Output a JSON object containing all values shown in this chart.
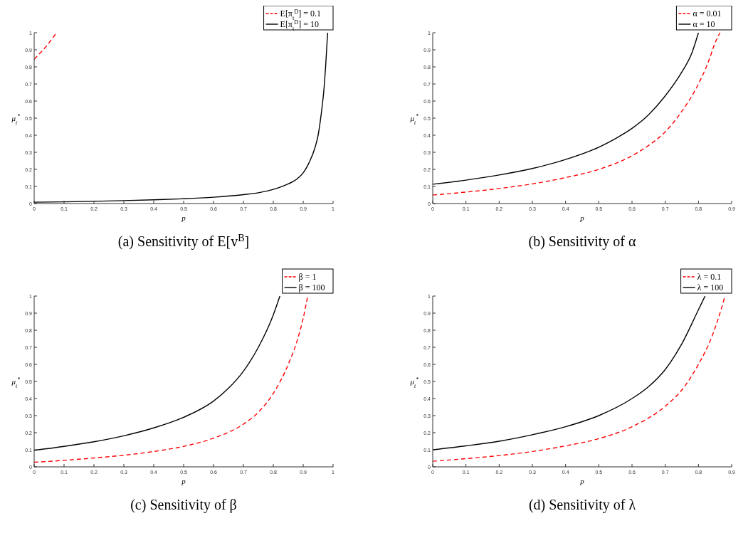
{
  "chart_data": [
    {
      "type": "line",
      "title": "(a) Sensitivity of E[v$^{B}$]",
      "xlabel": "p",
      "ylabel": "μ$_{t}$$^{*}$",
      "xlim": [
        0,
        1
      ],
      "ylim": [
        0,
        1
      ],
      "xticks": [
        0,
        0.1,
        0.2,
        0.3,
        0.4,
        0.5,
        0.6,
        0.7,
        0.8,
        0.9,
        1
      ],
      "yticks": [
        0,
        0.1,
        0.2,
        0.3,
        0.4,
        0.5,
        0.6,
        0.7,
        0.8,
        0.9,
        1
      ],
      "legend": "top right",
      "grid": false,
      "series": [
        {
          "name": "E[π$_{t}$$^{D}$] = 0.1",
          "color": "#ff0000",
          "line_style": "dashed",
          "x": [
            0,
            0.04,
            0.075
          ],
          "values": [
            0.845,
            0.92,
            1
          ]
        },
        {
          "name": "E[π$_{t}$$^{D}$] = 10",
          "color": "#000000",
          "line_style": "solid",
          "x": [
            0,
            0.1,
            0.2,
            0.3,
            0.4,
            0.5,
            0.6,
            0.7,
            0.75,
            0.8,
            0.85,
            0.88,
            0.9,
            0.92,
            0.94,
            0.95,
            0.96,
            0.97,
            0.975,
            0.98,
            0.982
          ],
          "values": [
            0.008,
            0.01,
            0.013,
            0.017,
            0.022,
            0.028,
            0.037,
            0.052,
            0.063,
            0.083,
            0.115,
            0.145,
            0.18,
            0.24,
            0.33,
            0.4,
            0.52,
            0.68,
            0.8,
            0.95,
            1
          ]
        }
      ]
    },
    {
      "type": "line",
      "title": "(b) Sensitivity of α",
      "xlabel": "p",
      "ylabel": "μ$_{t}$$^{*}$",
      "xlim": [
        0,
        0.9
      ],
      "ylim": [
        0,
        1
      ],
      "xticks": [
        0,
        0.1,
        0.2,
        0.3,
        0.4,
        0.5,
        0.6,
        0.7,
        0.8,
        0.9
      ],
      "yticks": [
        0,
        0.1,
        0.2,
        0.3,
        0.4,
        0.5,
        0.6,
        0.7,
        0.8,
        0.9,
        1
      ],
      "legend": "top right",
      "grid": false,
      "series": [
        {
          "name": "α = 0.01",
          "color": "#ff0000",
          "line_style": "dashed",
          "x": [
            0,
            0.1,
            0.2,
            0.3,
            0.4,
            0.5,
            0.6,
            0.65,
            0.7,
            0.75,
            0.8,
            0.83,
            0.85,
            0.865
          ],
          "values": [
            0.05,
            0.067,
            0.088,
            0.115,
            0.152,
            0.2,
            0.28,
            0.34,
            0.42,
            0.54,
            0.7,
            0.83,
            0.94,
            1
          ]
        },
        {
          "name": "α = 10",
          "color": "#000000",
          "line_style": "solid",
          "x": [
            0,
            0.1,
            0.2,
            0.3,
            0.4,
            0.5,
            0.55,
            0.6,
            0.65,
            0.7,
            0.75,
            0.78,
            0.8
          ],
          "values": [
            0.113,
            0.137,
            0.167,
            0.205,
            0.258,
            0.33,
            0.38,
            0.44,
            0.52,
            0.63,
            0.77,
            0.88,
            1
          ]
        }
      ]
    },
    {
      "type": "line",
      "title": "(c) Sensitivity of β",
      "xlabel": "p",
      "ylabel": "μ$_{t}$$^{*}$",
      "xlim": [
        0,
        1
      ],
      "ylim": [
        0,
        1
      ],
      "xticks": [
        0,
        0.1,
        0.2,
        0.3,
        0.4,
        0.5,
        0.6,
        0.7,
        0.8,
        0.9,
        1
      ],
      "yticks": [
        0,
        0.1,
        0.2,
        0.3,
        0.4,
        0.5,
        0.6,
        0.7,
        0.8,
        0.9,
        1
      ],
      "legend": "top right",
      "grid": false,
      "series": [
        {
          "name": "β = 1",
          "color": "#ff0000",
          "line_style": "dashed",
          "x": [
            0,
            0.1,
            0.2,
            0.3,
            0.4,
            0.5,
            0.6,
            0.7,
            0.75,
            0.8,
            0.85,
            0.88,
            0.9,
            0.915
          ],
          "values": [
            0.027,
            0.038,
            0.052,
            0.068,
            0.09,
            0.12,
            0.168,
            0.25,
            0.32,
            0.43,
            0.6,
            0.74,
            0.87,
            1
          ]
        },
        {
          "name": "β = 100",
          "color": "#000000",
          "line_style": "solid",
          "x": [
            0,
            0.1,
            0.2,
            0.3,
            0.4,
            0.5,
            0.6,
            0.65,
            0.7,
            0.75,
            0.8,
            0.822
          ],
          "values": [
            0.097,
            0.12,
            0.147,
            0.182,
            0.228,
            0.29,
            0.385,
            0.46,
            0.56,
            0.7,
            0.89,
            1
          ]
        }
      ]
    },
    {
      "type": "line",
      "title": "(d) Sensitivity of λ",
      "xlabel": "p",
      "ylabel": "μ$_{t}$$^{*}$",
      "xlim": [
        0,
        0.9
      ],
      "ylim": [
        0,
        1
      ],
      "xticks": [
        0,
        0.1,
        0.2,
        0.3,
        0.4,
        0.5,
        0.6,
        0.7,
        0.8,
        0.9
      ],
      "yticks": [
        0,
        0.1,
        0.2,
        0.3,
        0.4,
        0.5,
        0.6,
        0.7,
        0.8,
        0.9,
        1
      ],
      "legend": "top right",
      "grid": false,
      "series": [
        {
          "name": "λ = 0.1",
          "color": "#ff0000",
          "line_style": "dashed",
          "x": [
            0,
            0.1,
            0.2,
            0.3,
            0.4,
            0.5,
            0.6,
            0.7,
            0.75,
            0.8,
            0.84,
            0.86,
            0.88
          ],
          "values": [
            0.033,
            0.048,
            0.066,
            0.09,
            0.123,
            0.165,
            0.235,
            0.355,
            0.45,
            0.6,
            0.76,
            0.87,
            1
          ]
        },
        {
          "name": "λ = 100",
          "color": "#000000",
          "line_style": "solid",
          "x": [
            0,
            0.1,
            0.2,
            0.3,
            0.4,
            0.5,
            0.6,
            0.65,
            0.7,
            0.75,
            0.8,
            0.82
          ],
          "values": [
            0.1,
            0.123,
            0.15,
            0.188,
            0.235,
            0.3,
            0.4,
            0.47,
            0.57,
            0.72,
            0.92,
            1
          ]
        }
      ]
    }
  ]
}
